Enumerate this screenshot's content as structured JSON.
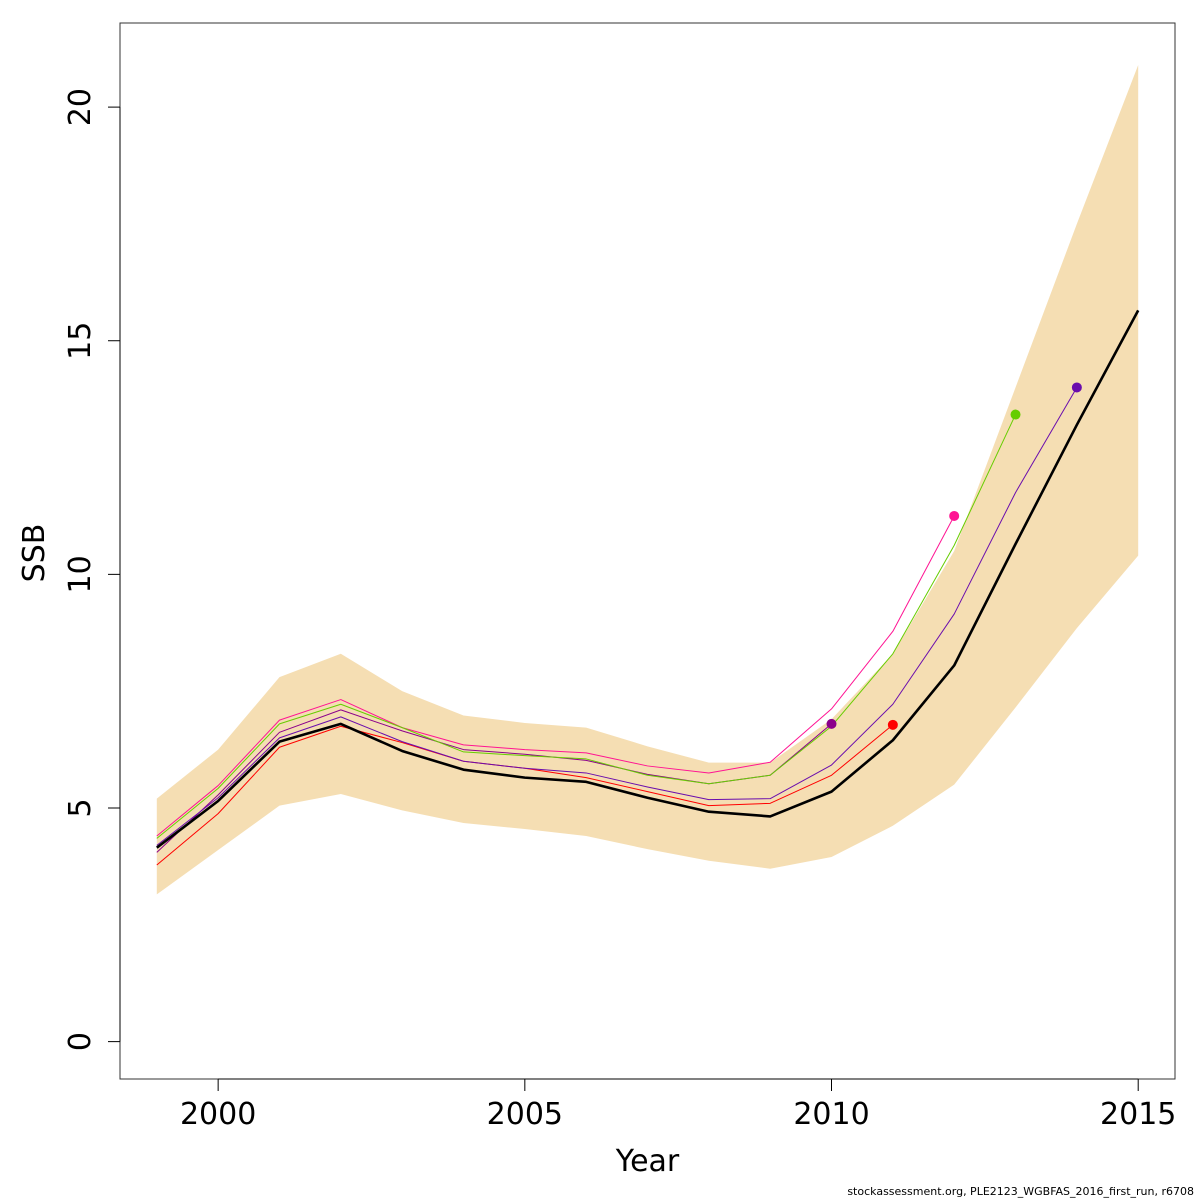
{
  "chart_data": {
    "type": "line",
    "title": "",
    "xlabel": "Year",
    "ylabel": "SSB",
    "xlim": [
      1998.4,
      2015.6
    ],
    "ylim": [
      -0.8,
      21.8
    ],
    "x_ticks": [
      2000,
      2005,
      2010,
      2015
    ],
    "y_ticks": [
      0,
      5,
      10,
      15,
      20
    ],
    "grid": false,
    "colors": {
      "band": "#f5deb3",
      "main": "#000000",
      "peels": [
        "#ff0000",
        "#8b008b",
        "#ff1493",
        "#66cd00",
        "#6a0dad"
      ]
    },
    "confidence_band": {
      "x": [
        1999,
        2000,
        2001,
        2002,
        2003,
        2004,
        2005,
        2006,
        2007,
        2008,
        2009,
        2010,
        2011,
        2012,
        2013,
        2014,
        2015
      ],
      "lower": [
        3.15,
        4.1,
        5.05,
        5.3,
        4.95,
        4.68,
        4.55,
        4.4,
        4.12,
        3.87,
        3.7,
        3.95,
        4.62,
        5.5,
        7.15,
        8.85,
        10.4
      ],
      "upper": [
        5.2,
        6.25,
        7.8,
        8.3,
        7.5,
        6.98,
        6.82,
        6.72,
        6.32,
        5.97,
        5.97,
        6.9,
        8.3,
        10.5,
        14.0,
        17.5,
        20.9
      ]
    },
    "series": [
      {
        "x": [
          1999,
          2000,
          2001,
          2002,
          2003,
          2004,
          2005,
          2006,
          2007,
          2008,
          2009,
          2010,
          2011,
          2012,
          2013,
          2014,
          2015
        ],
        "values": [
          4.15,
          5.15,
          6.42,
          6.8,
          6.22,
          5.82,
          5.65,
          5.56,
          5.22,
          4.92,
          4.82,
          5.35,
          6.45,
          8.05,
          10.65,
          13.2,
          15.65
        ],
        "color": "#000000",
        "width": 2.6,
        "endpoint": false
      },
      {
        "x": [
          1999,
          2000,
          2001,
          2002,
          2003,
          2004,
          2005,
          2006,
          2007,
          2008,
          2009,
          2010,
          2011
        ],
        "values": [
          3.78,
          4.88,
          6.3,
          6.75,
          6.4,
          6.0,
          5.85,
          5.65,
          5.35,
          5.05,
          5.1,
          5.7,
          6.78
        ],
        "color": "#ff0000",
        "width": 1,
        "endpoint": true
      },
      {
        "x": [
          1999,
          2000,
          2001,
          2002,
          2003,
          2004,
          2005,
          2006,
          2007,
          2008,
          2009,
          2010
        ],
        "values": [
          4.05,
          5.28,
          6.62,
          7.1,
          6.65,
          6.25,
          6.15,
          6.02,
          5.72,
          5.52,
          5.7,
          6.8
        ],
        "color": "#8b008b",
        "width": 1,
        "endpoint": true
      },
      {
        "x": [
          1999,
          2000,
          2001,
          2002,
          2003,
          2004,
          2005,
          2006,
          2007,
          2008,
          2009,
          2010,
          2011,
          2012
        ],
        "values": [
          4.4,
          5.48,
          6.88,
          7.32,
          6.72,
          6.35,
          6.25,
          6.18,
          5.9,
          5.75,
          5.98,
          7.12,
          8.78,
          11.25
        ],
        "color": "#ff1493",
        "width": 1,
        "endpoint": true
      },
      {
        "x": [
          1999,
          2000,
          2001,
          2002,
          2003,
          2004,
          2005,
          2006,
          2007,
          2008,
          2009,
          2010,
          2011,
          2012,
          2013
        ],
        "values": [
          4.35,
          5.42,
          6.8,
          7.22,
          6.72,
          6.2,
          6.12,
          6.05,
          5.7,
          5.52,
          5.7,
          6.75,
          8.3,
          10.62,
          13.42
        ],
        "color": "#66cd00",
        "width": 1,
        "endpoint": true
      },
      {
        "x": [
          1999,
          2000,
          2001,
          2002,
          2003,
          2004,
          2005,
          2006,
          2007,
          2008,
          2009,
          2010,
          2011,
          2012,
          2013,
          2014
        ],
        "values": [
          4.2,
          5.22,
          6.5,
          6.95,
          6.42,
          6.0,
          5.85,
          5.75,
          5.45,
          5.18,
          5.2,
          5.92,
          7.22,
          9.15,
          11.75,
          14.0
        ],
        "color": "#6a0dad",
        "width": 1,
        "endpoint": true
      }
    ],
    "footer": "stockassessment.org, PLE2123_WGBFAS_2016_first_run, r6708"
  }
}
